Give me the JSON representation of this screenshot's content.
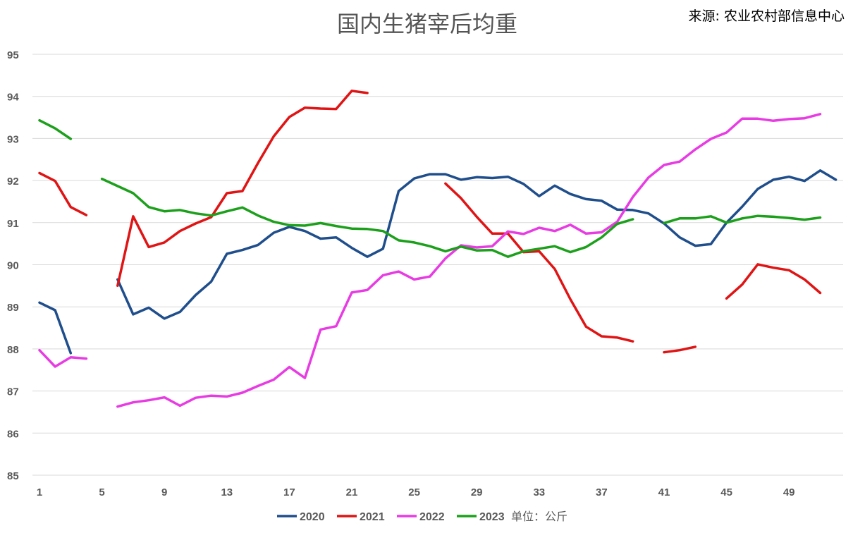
{
  "chart_data": {
    "type": "line",
    "title": "国内生猪宰后均重",
    "source": "来源: 农业农村部信息中心",
    "unit": "单位：公斤",
    "ylim": [
      85,
      95
    ],
    "yticks": [
      85,
      86,
      87,
      88,
      89,
      90,
      91,
      92,
      93,
      94,
      95
    ],
    "xlim": [
      1,
      52
    ],
    "xticks": [
      1,
      5,
      9,
      13,
      17,
      21,
      25,
      29,
      33,
      37,
      41,
      45,
      49
    ],
    "grid": true,
    "legend_position": "bottom",
    "series": [
      {
        "name": "2020",
        "color": "#1f4e8c",
        "values": [
          89.1,
          88.92,
          87.9,
          null,
          null,
          89.65,
          88.82,
          88.98,
          88.72,
          88.88,
          89.28,
          89.6,
          90.26,
          90.35,
          90.47,
          90.76,
          90.9,
          90.8,
          90.62,
          90.65,
          90.4,
          90.19,
          90.38,
          91.75,
          92.05,
          92.15,
          92.15,
          92.02,
          92.08,
          92.06,
          92.09,
          91.92,
          91.63,
          91.88,
          91.68,
          91.56,
          91.52,
          91.31,
          91.3,
          91.22,
          90.98,
          90.65,
          90.45,
          90.49,
          91.0,
          91.38,
          91.8,
          92.02,
          92.09,
          91.99,
          92.24,
          92.02
        ]
      },
      {
        "name": "2021",
        "color": "#e01414",
        "values": [
          92.18,
          91.99,
          91.37,
          91.18,
          null,
          89.5,
          91.15,
          90.42,
          90.53,
          90.8,
          90.98,
          91.13,
          91.7,
          91.75,
          92.42,
          93.05,
          93.51,
          93.73,
          93.71,
          93.7,
          94.13,
          94.08,
          null,
          null,
          null,
          null,
          91.93,
          91.58,
          91.14,
          90.74,
          90.74,
          90.3,
          90.32,
          89.9,
          89.18,
          88.53,
          88.3,
          88.27,
          88.18,
          null,
          87.92,
          87.97,
          88.05,
          null,
          89.2,
          89.53,
          90.01,
          89.93,
          89.87,
          89.65,
          89.33,
          null
        ]
      },
      {
        "name": "2022",
        "color": "#e83ce3",
        "values": [
          87.97,
          87.58,
          87.8,
          87.77,
          null,
          86.63,
          86.73,
          86.78,
          86.85,
          86.65,
          86.84,
          86.89,
          86.87,
          86.96,
          87.12,
          87.27,
          87.57,
          87.31,
          88.46,
          88.54,
          89.34,
          89.4,
          89.75,
          89.84,
          89.65,
          89.72,
          90.15,
          90.46,
          90.41,
          90.44,
          90.79,
          90.73,
          90.88,
          90.8,
          90.95,
          90.74,
          90.77,
          91.02,
          91.61,
          92.07,
          92.37,
          92.45,
          92.74,
          92.99,
          93.14,
          93.47,
          93.47,
          93.42,
          93.46,
          93.48,
          93.58,
          null
        ]
      },
      {
        "name": "2023",
        "color": "#1ca01c",
        "values": [
          93.43,
          93.24,
          92.99,
          null,
          92.04,
          91.87,
          91.7,
          91.37,
          91.27,
          91.3,
          91.22,
          91.17,
          91.27,
          91.36,
          91.17,
          91.02,
          90.94,
          90.93,
          90.99,
          90.92,
          90.86,
          90.85,
          90.8,
          90.58,
          90.53,
          90.44,
          90.32,
          90.43,
          90.34,
          90.35,
          90.19,
          90.32,
          90.38,
          90.44,
          90.3,
          90.42,
          90.65,
          90.97,
          91.08,
          null,
          90.99,
          91.1,
          91.1,
          91.15,
          91.0,
          91.1,
          91.16,
          91.14,
          91.11,
          91.07,
          91.12,
          null
        ]
      }
    ]
  }
}
